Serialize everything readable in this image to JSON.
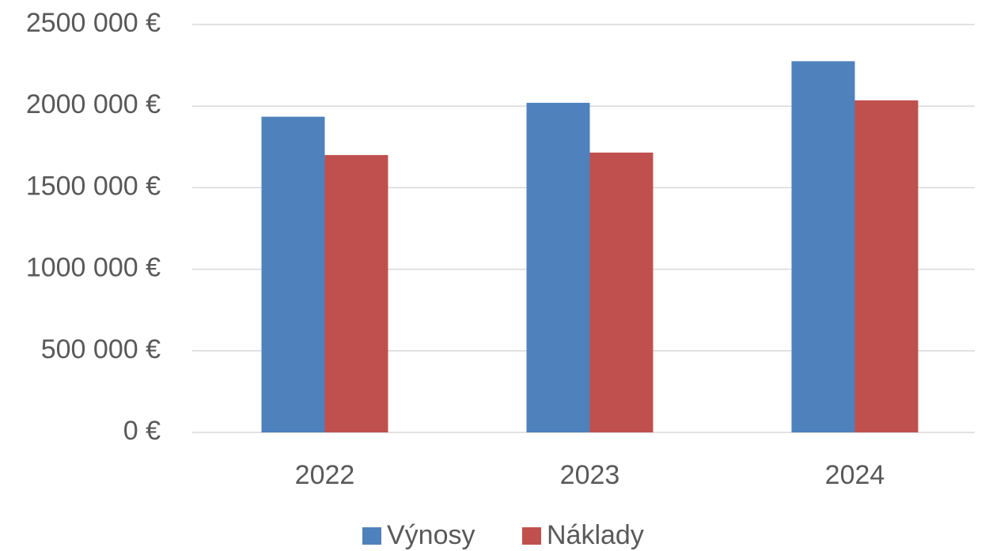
{
  "chart_data": {
    "type": "bar",
    "categories": [
      "2022",
      "2023",
      "2024"
    ],
    "series": [
      {
        "name": "Výnosy",
        "color": "#4f81bd",
        "values": [
          1935000,
          2020000,
          2275000
        ]
      },
      {
        "name": "Náklady",
        "color": "#c0504d",
        "values": [
          1700000,
          1715000,
          2035000
        ]
      }
    ],
    "ylim": [
      0,
      2500000
    ],
    "yticks": [
      {
        "value": 0,
        "label": "0 €"
      },
      {
        "value": 500000,
        "label": "500 000 €"
      },
      {
        "value": 1000000,
        "label": "1000 000 €"
      },
      {
        "value": 1500000,
        "label": "1500 000 €"
      },
      {
        "value": 2000000,
        "label": "2000 000 €"
      },
      {
        "value": 2500000,
        "label": "2500 000 €"
      }
    ],
    "grid": true,
    "legend": "bottom"
  }
}
